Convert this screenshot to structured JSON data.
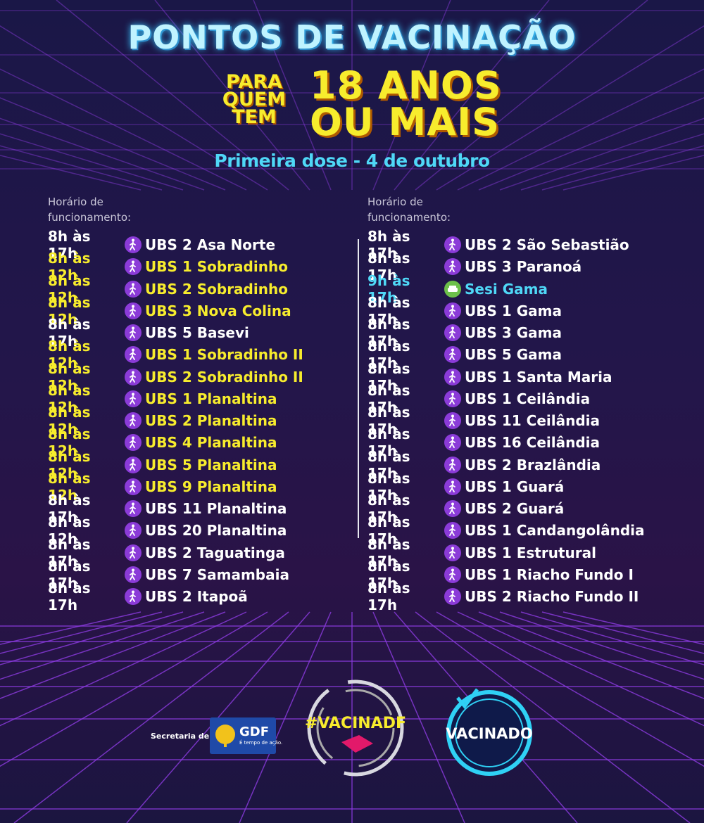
{
  "header": {
    "title": "PONTOS DE VACINAÇÃO",
    "audience_prefix": [
      "PARA",
      "QUEM",
      "TEM"
    ],
    "audience_main": [
      "18 ANOS",
      "OU MAIS"
    ],
    "subtitle": "Primeira dose - 4 de outubro"
  },
  "columns": [
    {
      "hours_label": "Horário de funcionamento:",
      "rows": [
        {
          "time": "8h às 17h",
          "place": "UBS 2 Asa Norte",
          "color": "#ffffff",
          "icon": "walk"
        },
        {
          "time": "8h às 12h",
          "place": "UBS 1 Sobradinho",
          "color": "#f7ec2d",
          "icon": "walk"
        },
        {
          "time": "8h às 12h",
          "place": "UBS 2 Sobradinho",
          "color": "#f7ec2d",
          "icon": "walk"
        },
        {
          "time": "8h às 12h",
          "place": "UBS 3 Nova Colina",
          "color": "#f7ec2d",
          "icon": "walk"
        },
        {
          "time": "8h às 17h",
          "place": "UBS 5 Basevi",
          "color": "#ffffff",
          "icon": "walk"
        },
        {
          "time": "8h às 12h",
          "place": "UBS 1 Sobradinho II",
          "color": "#f7ec2d",
          "icon": "walk"
        },
        {
          "time": "8h às 12h",
          "place": "UBS 2 Sobradinho II",
          "color": "#f7ec2d",
          "icon": "walk"
        },
        {
          "time": "8h às 12h",
          "place": "UBS 1 Planaltina",
          "color": "#f7ec2d",
          "icon": "walk"
        },
        {
          "time": "8h às 12h",
          "place": "UBS 2 Planaltina",
          "color": "#f7ec2d",
          "icon": "walk"
        },
        {
          "time": "8h às 12h",
          "place": "UBS 4 Planaltina",
          "color": "#f7ec2d",
          "icon": "walk"
        },
        {
          "time": "8h às 12h",
          "place": "UBS 5 Planaltina",
          "color": "#f7ec2d",
          "icon": "walk"
        },
        {
          "time": "8h às 12h",
          "place": "UBS 9 Planaltina",
          "color": "#f7ec2d",
          "icon": "walk"
        },
        {
          "time": "8h às 17h",
          "place": "UBS 11 Planaltina",
          "color": "#ffffff",
          "icon": "walk"
        },
        {
          "time": "8h às 12h",
          "place": "UBS 20 Planaltina",
          "color": "#ffffff",
          "icon": "walk"
        },
        {
          "time": "8h às 17h",
          "place": "UBS 2 Taguatinga",
          "color": "#ffffff",
          "icon": "walk"
        },
        {
          "time": "8h às 17h",
          "place": "UBS 7 Samambaia",
          "color": "#ffffff",
          "icon": "walk"
        },
        {
          "time": "8h às 17h",
          "place": "UBS 2 Itapoã",
          "color": "#ffffff",
          "icon": "walk"
        }
      ]
    },
    {
      "hours_label": "Horário de funcionamento:",
      "rows": [
        {
          "time": "8h às 17h",
          "place": "UBS 2 São Sebastião",
          "color": "#ffffff",
          "icon": "walk"
        },
        {
          "time": "8h às 17h",
          "place": "UBS 3 Paranoá",
          "color": "#ffffff",
          "icon": "walk"
        },
        {
          "time": "9h às 17h",
          "place": "Sesi Gama",
          "color": "#4fd8f7",
          "icon": "drive"
        },
        {
          "time": "8h às 17h",
          "place": "UBS 1 Gama",
          "color": "#ffffff",
          "icon": "walk"
        },
        {
          "time": "8h às 17h",
          "place": "UBS 3 Gama",
          "color": "#ffffff",
          "icon": "walk"
        },
        {
          "time": "8h às 17h",
          "place": "UBS 5 Gama",
          "color": "#ffffff",
          "icon": "walk"
        },
        {
          "time": "8h às 17h",
          "place": "UBS 1 Santa Maria",
          "color": "#ffffff",
          "icon": "walk"
        },
        {
          "time": "8h às 17h",
          "place": "UBS 1 Ceilândia",
          "color": "#ffffff",
          "icon": "walk"
        },
        {
          "time": "8h às 17h",
          "place": "UBS 11 Ceilândia",
          "color": "#ffffff",
          "icon": "walk"
        },
        {
          "time": "8h às 17h",
          "place": "UBS 16 Ceilândia",
          "color": "#ffffff",
          "icon": "walk"
        },
        {
          "time": "8h às 17h",
          "place": "UBS 2 Brazlândia",
          "color": "#ffffff",
          "icon": "walk"
        },
        {
          "time": "8h às 17h",
          "place": "UBS 1 Guará",
          "color": "#ffffff",
          "icon": "walk"
        },
        {
          "time": "8h às 17h",
          "place": "UBS 2 Guará",
          "color": "#ffffff",
          "icon": "walk"
        },
        {
          "time": "8h às 17h",
          "place": "UBS 1 Candangolândia",
          "color": "#ffffff",
          "icon": "walk"
        },
        {
          "time": "8h às 17h",
          "place": "UBS 1 Estrutural",
          "color": "#ffffff",
          "icon": "walk"
        },
        {
          "time": "8h às 17h",
          "place": "UBS 1 Riacho Fundo I",
          "color": "#ffffff",
          "icon": "walk"
        },
        {
          "time": "8h às 17h",
          "place": "UBS 2 Riacho Fundo II",
          "color": "#ffffff",
          "icon": "walk"
        }
      ]
    }
  ],
  "footer": {
    "secretaria": "Secretaria de Saúde",
    "gdf": "GDF",
    "gdf_tagline": "É tempo de ação.",
    "vacinadf": "#VACINADF",
    "vacinado": "VACINADO"
  }
}
